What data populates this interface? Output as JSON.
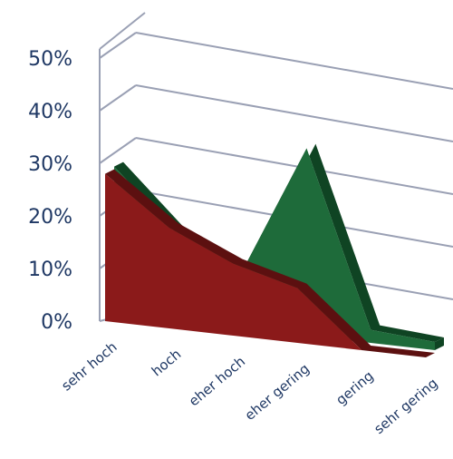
{
  "chart_data": {
    "type": "area",
    "categories": [
      "sehr hoch",
      "hoch",
      "eher hoch",
      "eher gering",
      "gering",
      "sehr gering"
    ],
    "series": [
      {
        "color": "#1e6b3a",
        "values": [
          28,
          17,
          12,
          41,
          3,
          2
        ]
      },
      {
        "color": "#8b1a1a",
        "values": [
          28,
          20,
          15,
          12,
          0,
          0
        ]
      }
    ],
    "ylim": [
      0,
      50
    ],
    "y_ticks": [
      "0%",
      "10%",
      "20%",
      "30%",
      "40%",
      "50%"
    ],
    "grid": true,
    "legend": "none",
    "style": "3d"
  }
}
